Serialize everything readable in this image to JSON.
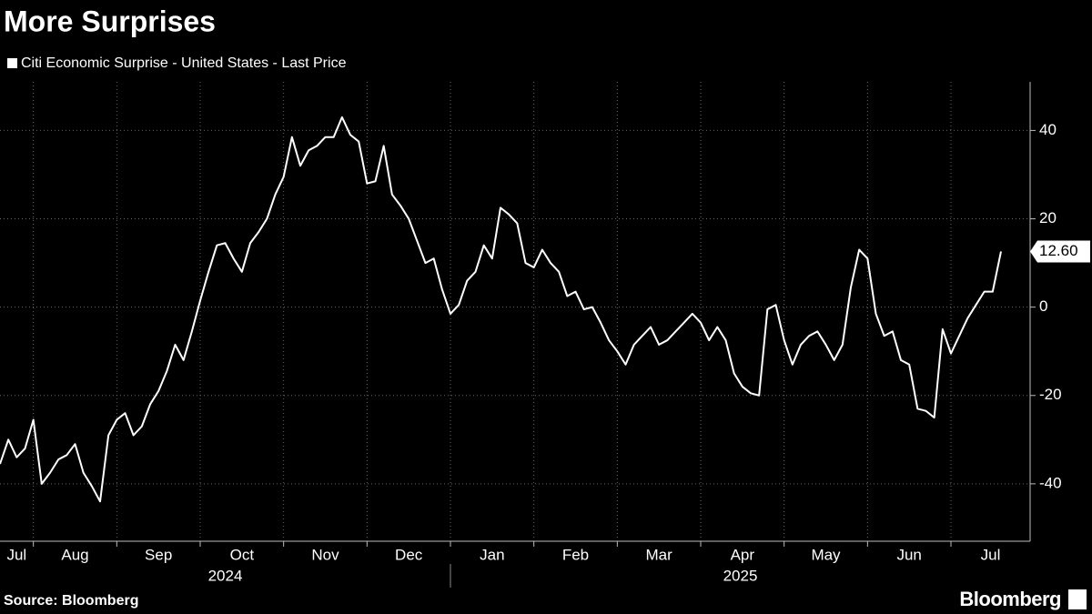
{
  "chart_data": {
    "type": "line",
    "title": "More Surprises",
    "source": "Source: Bloomberg",
    "brand": "Bloomberg",
    "categories": [
      "Jul",
      null,
      null,
      null,
      "Aug",
      null,
      null,
      null,
      null,
      null,
      null,
      null,
      null,
      null,
      "Sep",
      null,
      null,
      null,
      null,
      null,
      null,
      null,
      null,
      null,
      "Oct",
      null,
      null,
      null,
      null,
      null,
      null,
      null,
      null,
      null,
      "Nov",
      null,
      null,
      null,
      null,
      null,
      null,
      null,
      null,
      null,
      "Dec",
      null,
      null,
      null,
      null,
      null,
      null,
      null,
      null,
      null,
      "Jan",
      null,
      null,
      null,
      null,
      null,
      null,
      null,
      null,
      null,
      "Feb",
      null,
      null,
      null,
      null,
      null,
      null,
      null,
      null,
      null,
      "Mar",
      null,
      null,
      null,
      null,
      null,
      null,
      null,
      null,
      null,
      "Apr",
      null,
      null,
      null,
      null,
      null,
      null,
      null,
      null,
      null,
      "May",
      null,
      null,
      null,
      null,
      null,
      null,
      null,
      null,
      null,
      "Jun",
      null,
      null,
      null,
      null,
      null,
      null,
      null,
      null,
      null,
      "Jul",
      null,
      null,
      null,
      null,
      null,
      null
    ],
    "years": [
      {
        "label": "2024",
        "from": 0
      },
      {
        "label": "2025",
        "from": 54
      }
    ],
    "series": [
      {
        "name": "Citi Economic Surprise - United States - Last Price",
        "color": "#ffffff",
        "values": [
          -35.5,
          -30,
          -34,
          -32,
          -25.5,
          -40,
          -37.5,
          -34.5,
          -33.5,
          -31,
          -37.5,
          -40.5,
          -44,
          -29,
          -25.5,
          -24,
          -29,
          -27,
          -22,
          -19,
          -14.5,
          -8.5,
          -12,
          -5.5,
          1.5,
          8,
          14,
          14.5,
          11,
          8,
          14.5,
          17,
          20,
          25.5,
          29.5,
          38.5,
          32,
          35.5,
          36.5,
          38.5,
          38.5,
          43,
          39,
          37.5,
          28,
          28.5,
          36.5,
          25.5,
          23,
          20,
          15,
          10,
          11,
          4,
          -1.5,
          0.5,
          6,
          8,
          14,
          11,
          22.5,
          21,
          19,
          10,
          9,
          13,
          10,
          8,
          2.5,
          3.5,
          -0.5,
          0,
          -3.5,
          -7.5,
          -10,
          -13,
          -8.5,
          -6.5,
          -4.5,
          -8.5,
          -7.5,
          -5.5,
          -3.5,
          -1.5,
          -3.5,
          -7.5,
          -4.5,
          -7.5,
          -15,
          -18,
          -19.5,
          -20,
          -0.5,
          0.5,
          -7.5,
          -13,
          -8.5,
          -6.5,
          -5.5,
          -8.5,
          -12,
          -8.5,
          4.5,
          13,
          11,
          -1.5,
          -6.5,
          -5.5,
          -12,
          -13,
          -23,
          -23.5,
          -25,
          -5,
          -10.5,
          -6.5,
          -2.5,
          0.5,
          3.5,
          3.5,
          12.6
        ],
        "value_labels": [
          null,
          null,
          null,
          null,
          null,
          null,
          null,
          null,
          null,
          null,
          null,
          null,
          null,
          null,
          null,
          null,
          null,
          null,
          null,
          null,
          null,
          null,
          null,
          null,
          null,
          null,
          null,
          null,
          null,
          null,
          null,
          null,
          null,
          null,
          null,
          null,
          null,
          null,
          null,
          null,
          null,
          null,
          null,
          null,
          null,
          null,
          null,
          null,
          null,
          null,
          null,
          null,
          null,
          null,
          null,
          null,
          null,
          null,
          null,
          null,
          null,
          null,
          null,
          null,
          null,
          null,
          null,
          null,
          null,
          null,
          null,
          null,
          null,
          null,
          null,
          null,
          null,
          null,
          null,
          null,
          null,
          null,
          null,
          null,
          null,
          null,
          null,
          null,
          null,
          null,
          null,
          null,
          null,
          null,
          null,
          null,
          null,
          null,
          null,
          null,
          null,
          null,
          null,
          null,
          null,
          null,
          null,
          null,
          null,
          null,
          null,
          null,
          null,
          null,
          null,
          null,
          null,
          null,
          null,
          null,
          "12.60"
        ]
      }
    ],
    "ylim": [
      -53,
      51
    ],
    "yticks": [
      -40,
      -20,
      0,
      20,
      40
    ],
    "grid": true
  }
}
